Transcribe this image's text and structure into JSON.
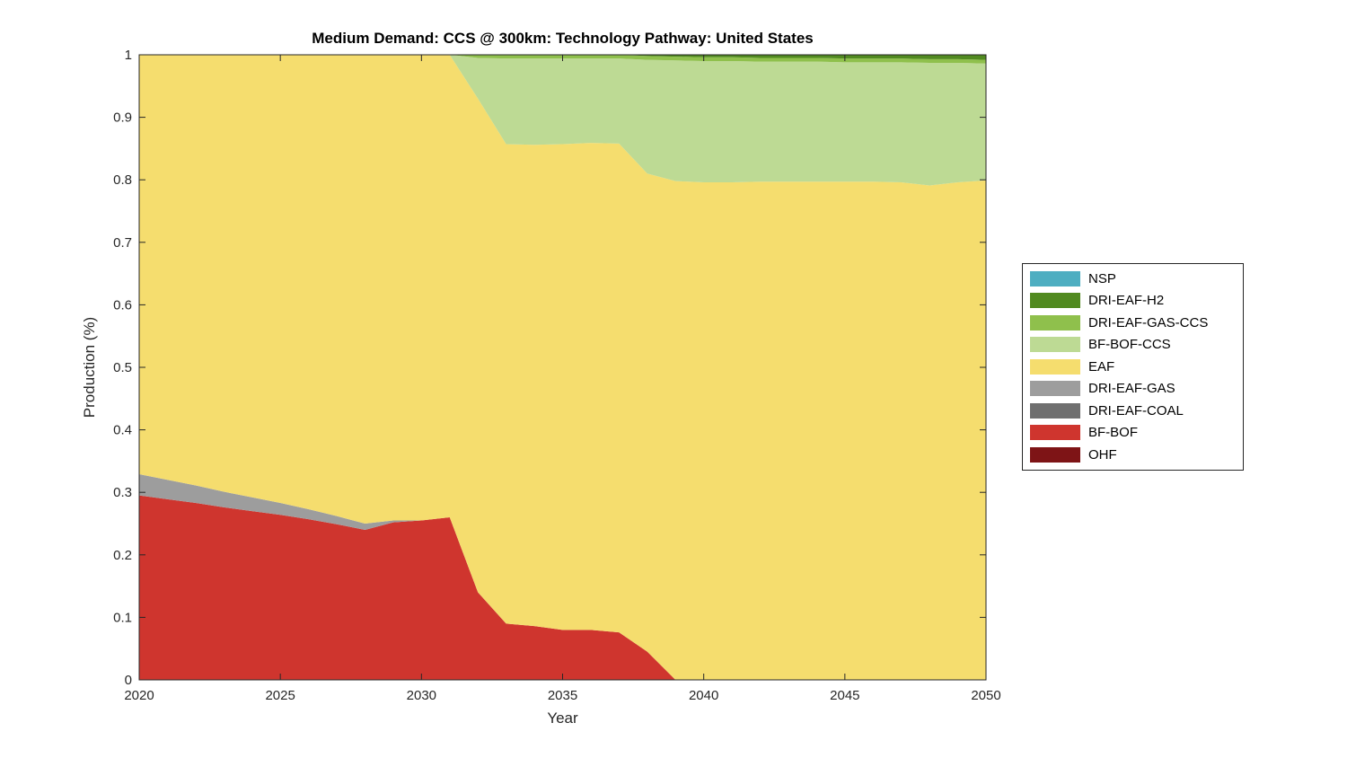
{
  "figure": {
    "title": "Medium Demand: CCS @ 300km: Technology Pathway: United States",
    "xlabel": "Year",
    "ylabel": "Production (%)"
  },
  "chart_data": {
    "type": "area",
    "stacked": true,
    "title": "Medium Demand: CCS @ 300km: Technology Pathway: United States",
    "xlabel": "Year",
    "ylabel": "Production (%)",
    "xlim": [
      2020,
      2050
    ],
    "ylim": [
      0,
      1
    ],
    "grid": false,
    "xticks": [
      2020,
      2025,
      2030,
      2035,
      2040,
      2045,
      2050
    ],
    "xtick_labels": [
      "2020",
      "2025",
      "2030",
      "2035",
      "2040",
      "2045",
      "2050"
    ],
    "yticks": [
      0,
      0.1,
      0.2,
      0.3,
      0.4,
      0.5,
      0.6,
      0.7,
      0.8,
      0.9,
      1
    ],
    "ytick_labels": [
      "0",
      "0.1",
      "0.2",
      "0.3",
      "0.4",
      "0.5",
      "0.6",
      "0.7",
      "0.8",
      "0.9",
      "1"
    ],
    "x": [
      2020,
      2021,
      2022,
      2023,
      2024,
      2025,
      2026,
      2027,
      2028,
      2029,
      2030,
      2031,
      2032,
      2033,
      2034,
      2035,
      2036,
      2037,
      2038,
      2039,
      2040,
      2041,
      2042,
      2043,
      2044,
      2045,
      2046,
      2047,
      2048,
      2049,
      2050
    ],
    "series": [
      {
        "name": "OHF",
        "color": "#7E1416",
        "values": [
          0,
          0,
          0,
          0,
          0,
          0,
          0,
          0,
          0,
          0,
          0,
          0,
          0,
          0,
          0,
          0,
          0,
          0,
          0,
          0,
          0,
          0,
          0,
          0,
          0,
          0,
          0,
          0,
          0,
          0,
          0
        ]
      },
      {
        "name": "BF-BOF",
        "color": "#CF352E",
        "values": [
          0.295,
          0.289,
          0.283,
          0.276,
          0.27,
          0.264,
          0.257,
          0.249,
          0.24,
          0.252,
          0.255,
          0.26,
          0.14,
          0.09,
          0.086,
          0.08,
          0.08,
          0.076,
          0.045,
          0,
          0,
          0,
          0,
          0,
          0,
          0,
          0,
          0,
          0,
          0,
          0
        ]
      },
      {
        "name": "DRI-EAF-COAL",
        "color": "#6F6F6F",
        "values": [
          0,
          0,
          0,
          0,
          0,
          0,
          0,
          0,
          0,
          0,
          0,
          0,
          0,
          0,
          0,
          0,
          0,
          0,
          0,
          0,
          0,
          0,
          0,
          0,
          0,
          0,
          0,
          0,
          0,
          0,
          0
        ]
      },
      {
        "name": "DRI-EAF-GAS",
        "color": "#9D9D9D",
        "values": [
          0.034,
          0.031,
          0.028,
          0.025,
          0.022,
          0.019,
          0.016,
          0.013,
          0.01,
          0.003,
          0,
          0,
          0,
          0,
          0,
          0,
          0,
          0,
          0,
          0,
          0,
          0,
          0,
          0,
          0,
          0,
          0,
          0,
          0,
          0,
          0
        ]
      },
      {
        "name": "EAF",
        "color": "#F5DD6E",
        "values": [
          0.671,
          0.68,
          0.689,
          0.699,
          0.708,
          0.717,
          0.727,
          0.738,
          0.75,
          0.745,
          0.745,
          0.74,
          0.79,
          0.767,
          0.77,
          0.777,
          0.779,
          0.782,
          0.765,
          0.798,
          0.796,
          0.796,
          0.797,
          0.797,
          0.797,
          0.797,
          0.797,
          0.796,
          0.791,
          0.796,
          0.799
        ]
      },
      {
        "name": "BF-BOF-CCS",
        "color": "#BDDA94",
        "values": [
          0,
          0,
          0,
          0,
          0,
          0,
          0,
          0,
          0,
          0,
          0,
          0,
          0.065,
          0.137,
          0.138,
          0.137,
          0.135,
          0.136,
          0.182,
          0.193,
          0.194,
          0.194,
          0.192,
          0.192,
          0.192,
          0.191,
          0.191,
          0.192,
          0.196,
          0.191,
          0.187
        ]
      },
      {
        "name": "DRI-EAF-GAS-CCS",
        "color": "#8FC04C",
        "values": [
          0,
          0,
          0,
          0,
          0,
          0,
          0,
          0,
          0,
          0,
          0,
          0,
          0.005,
          0.006,
          0.006,
          0.006,
          0.006,
          0.006,
          0.006,
          0.006,
          0.006,
          0.006,
          0.006,
          0.006,
          0.006,
          0.006,
          0.006,
          0.006,
          0.006,
          0.006,
          0.006
        ]
      },
      {
        "name": "DRI-EAF-H2",
        "color": "#518A20",
        "values": [
          0,
          0,
          0,
          0,
          0,
          0,
          0,
          0,
          0,
          0,
          0,
          0,
          0,
          0,
          0,
          0,
          0,
          0,
          0.002,
          0.003,
          0.004,
          0.004,
          0.005,
          0.005,
          0.005,
          0.006,
          0.006,
          0.006,
          0.007,
          0.007,
          0.008
        ]
      },
      {
        "name": "NSP",
        "color": "#4EAEC1",
        "values": [
          0,
          0,
          0,
          0,
          0,
          0,
          0,
          0,
          0,
          0,
          0,
          0,
          0,
          0,
          0,
          0,
          0,
          0,
          0,
          0,
          0,
          0,
          0,
          0,
          0,
          0,
          0,
          0,
          0,
          0,
          0
        ]
      }
    ],
    "legend": {
      "position": "right-outside",
      "items_top_to_bottom": [
        "NSP",
        "DRI-EAF-H2",
        "DRI-EAF-GAS-CCS",
        "BF-BOF-CCS",
        "EAF",
        "DRI-EAF-GAS",
        "DRI-EAF-COAL",
        "BF-BOF",
        "OHF"
      ]
    }
  }
}
